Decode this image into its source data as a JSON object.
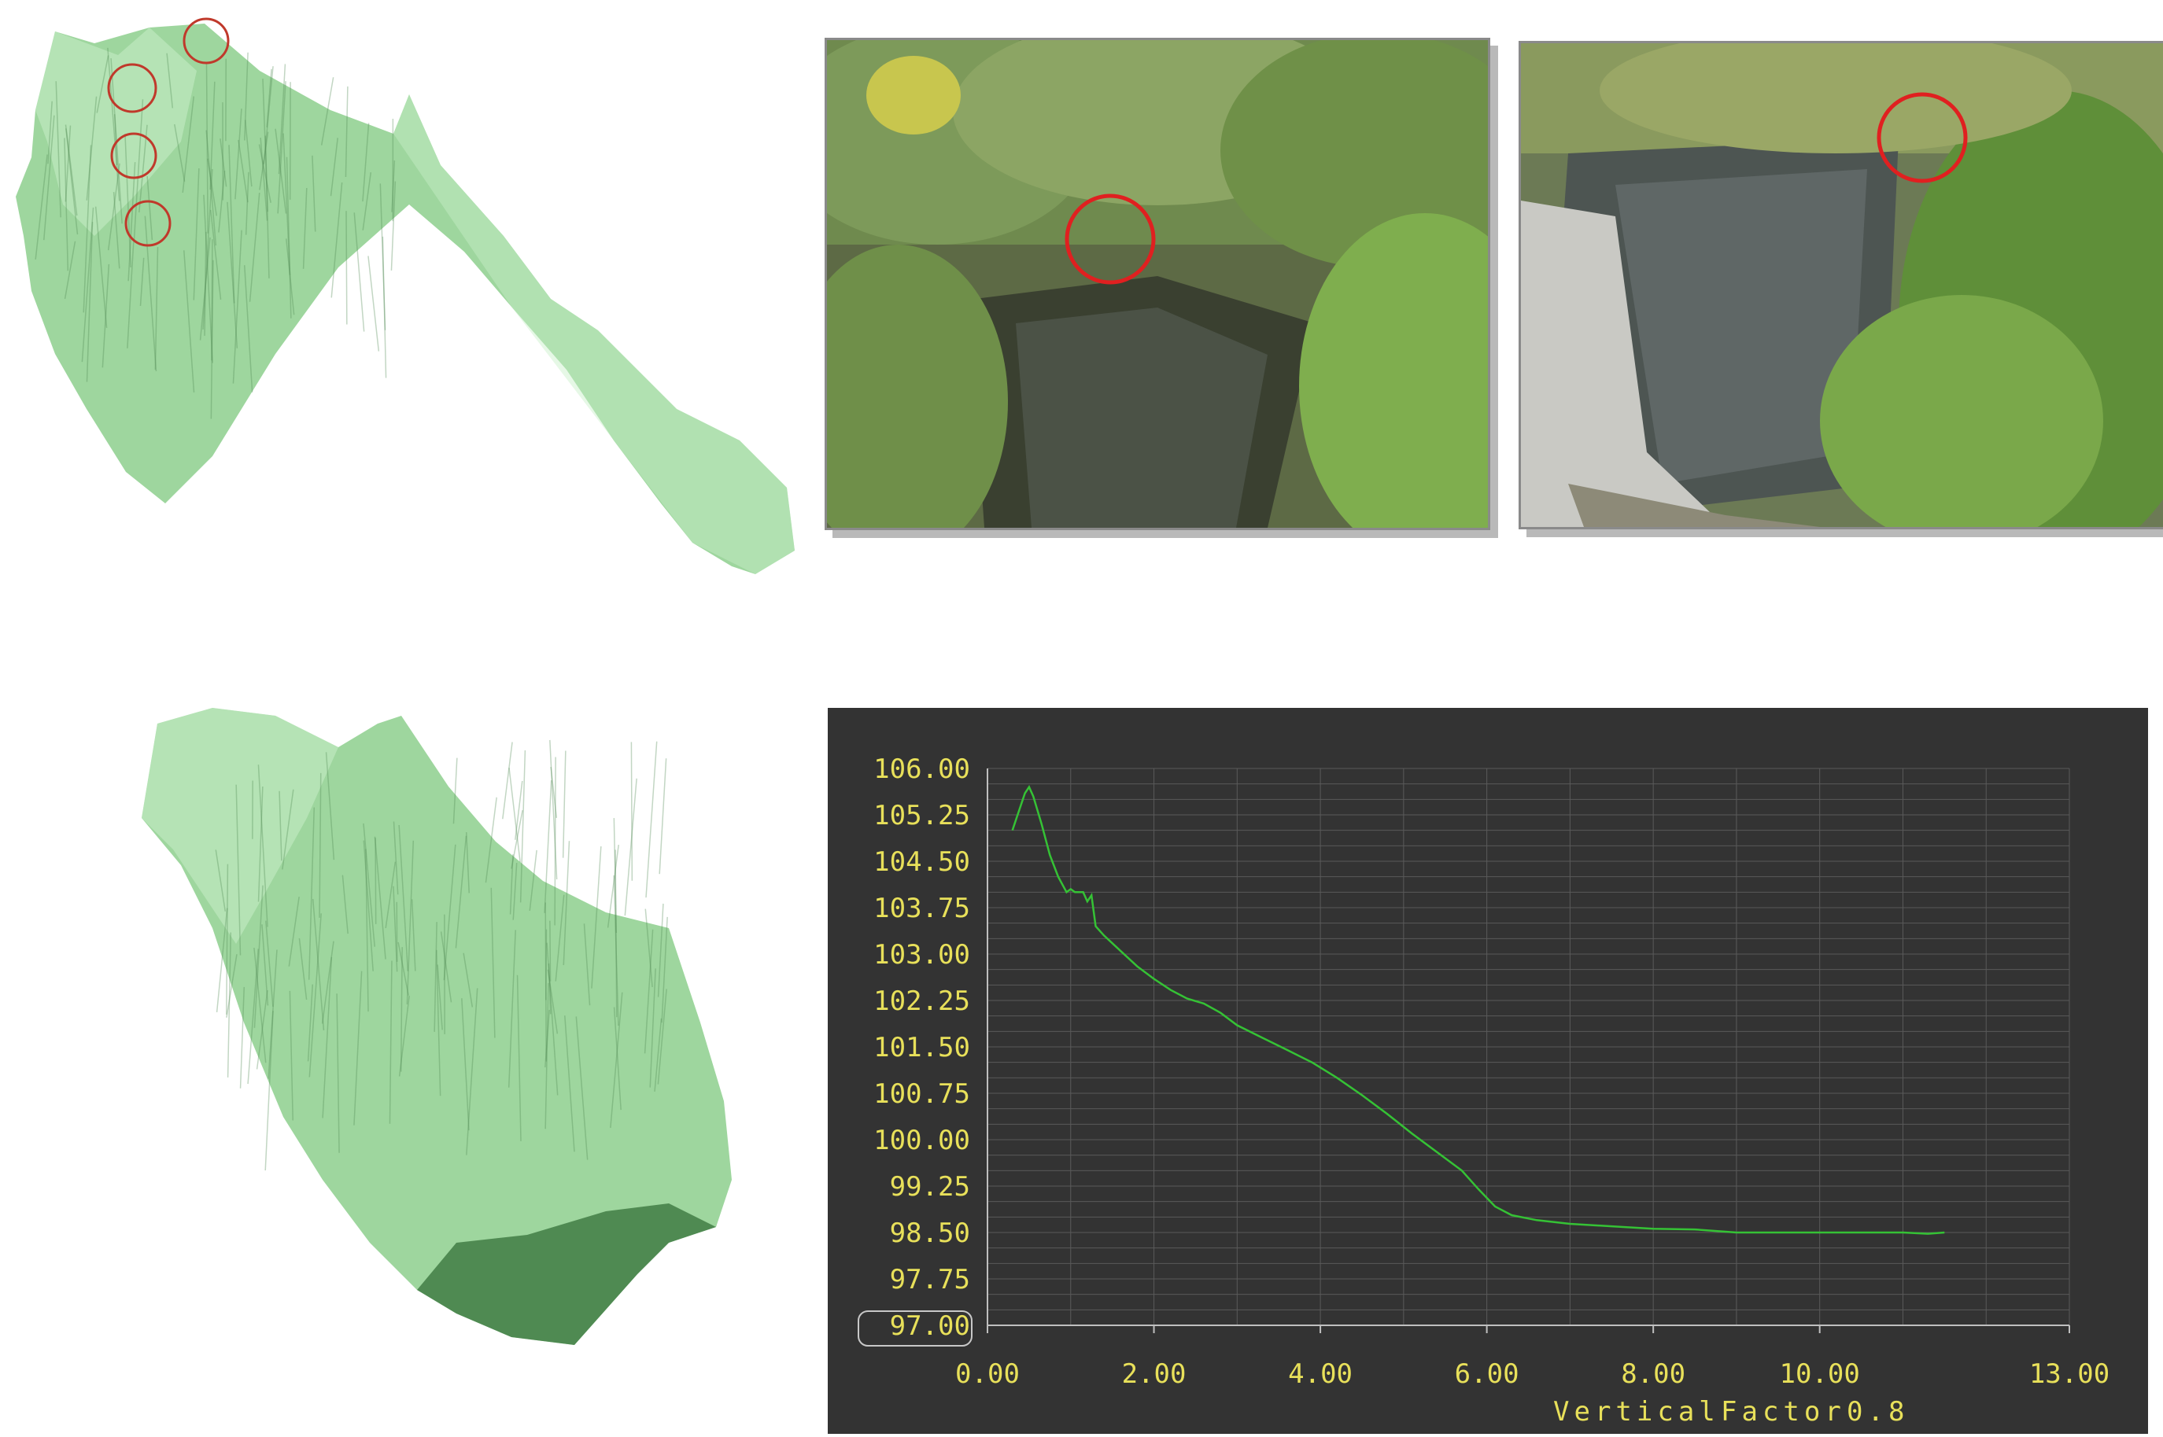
{
  "colors": {
    "terrain_light": "#c8efc8",
    "terrain_mid": "#9ed69e",
    "terrain_dark": "#4f8a52",
    "marker_red": "#e02020",
    "chart_bg": "#333333",
    "grid": "#5a5a5a",
    "axis_text": "#e8e05a",
    "line": "#35c235"
  },
  "photos": [
    {
      "caption": "",
      "scene": "canyon-vegetation"
    },
    {
      "caption": "",
      "scene": "canyon-rock-wall"
    }
  ],
  "chart_data": {
    "type": "line",
    "title": "",
    "xlabel": "",
    "ylabel": "",
    "footer_label": "Vertical",
    "footer_word": "Factor",
    "footer_value": "0.8",
    "xlim": [
      0,
      13
    ],
    "ylim": [
      97,
      106
    ],
    "x_ticks": [
      "0.00",
      "2.00",
      "4.00",
      "6.00",
      "8.00",
      "10.00",
      "13.00"
    ],
    "x_tick_values": [
      0,
      2,
      4,
      6,
      8,
      10,
      13
    ],
    "y_ticks": [
      "106.00",
      "105.25",
      "104.50",
      "103.75",
      "103.00",
      "102.25",
      "101.50",
      "100.75",
      "100.00",
      "99.25",
      "98.50",
      "97.75",
      "97.00"
    ],
    "y_tick_values": [
      106,
      105.25,
      104.5,
      103.75,
      103,
      102.25,
      101.5,
      100.75,
      100,
      99.25,
      98.5,
      97.75,
      97
    ],
    "grid": true,
    "series": [
      {
        "x": [
          0.3,
          0.35,
          0.45,
          0.5,
          0.55,
          0.65,
          0.75,
          0.85,
          0.95,
          1.0,
          1.05,
          1.15,
          1.2,
          1.25,
          1.3,
          1.4,
          1.6,
          1.8,
          2.0,
          2.2,
          2.4,
          2.6,
          2.8,
          3.0,
          3.3,
          3.6,
          3.9,
          4.2,
          4.5,
          4.8,
          5.1,
          5.4,
          5.7,
          5.9,
          6.1,
          6.3,
          6.6,
          7.0,
          7.5,
          8.0,
          8.5,
          9.0,
          9.5,
          10.0,
          10.5,
          11.0,
          11.3,
          11.5
        ],
        "y": [
          105.0,
          105.2,
          105.6,
          105.7,
          105.55,
          105.1,
          104.6,
          104.25,
          104.0,
          104.05,
          104.0,
          104.0,
          103.85,
          103.95,
          103.45,
          103.3,
          103.05,
          102.8,
          102.6,
          102.42,
          102.28,
          102.2,
          102.05,
          101.85,
          101.65,
          101.45,
          101.25,
          101.0,
          100.72,
          100.42,
          100.1,
          99.8,
          99.5,
          99.2,
          98.92,
          98.78,
          98.7,
          98.64,
          98.6,
          98.56,
          98.55,
          98.5,
          98.5,
          98.5,
          98.5,
          98.5,
          98.48,
          98.5
        ]
      }
    ]
  }
}
